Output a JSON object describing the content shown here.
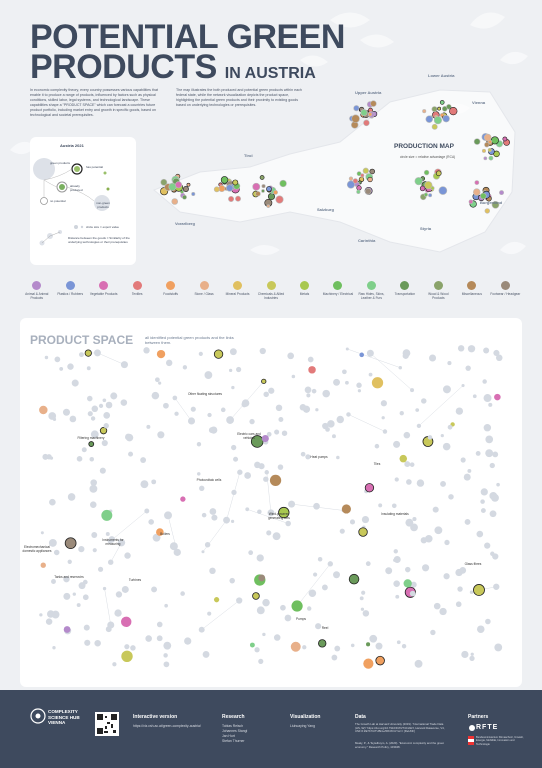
{
  "title": {
    "line1": "POTENTIAL GREEN",
    "line2": "PRODUCTS",
    "suffix": "IN AUSTRIA"
  },
  "intro_text": "In economic complexity theory, every country possesses various capabilities that enable it to produce a range of products, influenced by factors such as physical conditions, skilled labor, legal systems, and technological landscape. These capabilities shape a \"PRODUCT SPACE\" which can forecast a countries future product portfolio, including market entry and growth in specific goods, based on technological and societal prerequisites.",
  "map_text": "The map illustrates the both produced and potential green products within each federal state, while the network visualization depicts the product space, highlighting the potential green products and their proximity to existing goods based on underlying technologies or prerequisites.",
  "legend": {
    "title": "Austria 2021",
    "labels": [
      "green products",
      "has potential",
      "already produced",
      "no potential",
      "non-green products"
    ],
    "size_note": "circle size = export value",
    "distance_note": "Distance between the goods = Similarity of the underlying technologies or their prerequisites"
  },
  "production_map": {
    "title": "PRODUCTION MAP",
    "subtitle": "circle size = relative advantage (RCA)",
    "regions": [
      "Upper Austria",
      "Lower Austria",
      "Vienna",
      "Tirol",
      "Vorarlberg",
      "Salzburg",
      "Carinthia",
      "Styria",
      "Burgenland"
    ]
  },
  "categories": [
    {
      "label": "Animal & Animal Products",
      "color": "#b48acb"
    },
    {
      "label": "Plastics / Rubbers",
      "color": "#7a95d6"
    },
    {
      "label": "Vegetable Products",
      "color": "#d86fb3"
    },
    {
      "label": "Textiles",
      "color": "#e27a7a"
    },
    {
      "label": "Foodstuffs",
      "color": "#f0a060"
    },
    {
      "label": "Stone / Glass",
      "color": "#e8b08a"
    },
    {
      "label": "Mineral Products",
      "color": "#e0c060"
    },
    {
      "label": "Chemicals & Allied Industries",
      "color": "#c8c85a"
    },
    {
      "label": "Metals",
      "color": "#a8c850"
    },
    {
      "label": "Machinery / Electrical",
      "color": "#6fbf5f"
    },
    {
      "label": "Raw Hides, Skins, Leather & Furs",
      "color": "#7fcf8a"
    },
    {
      "label": "Transportation",
      "color": "#6a9a5a"
    },
    {
      "label": "Wood & Wood Products",
      "color": "#8aa36a"
    },
    {
      "label": "Miscellaneous",
      "color": "#b58a5a"
    },
    {
      "label": "Footwear / Headgear",
      "color": "#9a8a7a"
    }
  ],
  "product_space": {
    "title": "PRODUCT SPACE",
    "subtitle": "all identified potential green products and the links between them.",
    "labels": [
      "Other floating structures",
      "Electric cars and vehicles",
      "Photovoltaic cells",
      "Wind-powered generating sets",
      "Heat pumps",
      "Electromechanical domestic appliances",
      "Tanks and reservoirs",
      "Instruments for measuring",
      "Boilers",
      "Turbines",
      "Tiles",
      "Insulating materials",
      "Glass fibres",
      "Filtering machinery",
      "Pumps",
      "Reel"
    ]
  },
  "footer": {
    "org": "COMPLEXITY SCIENCE HUB VIENNA",
    "interactive_title": "Interactive version",
    "interactive_url": "https://viz.csh.ac.at/green-complexity-austria/",
    "research_title": "Research",
    "researchers": [
      "Tobias Reisch",
      "Johannes Stangl",
      "Jan Hurt",
      "Stefan Thurner"
    ],
    "visualization_title": "Visualization",
    "visualizer": "Liuhuaying Yang",
    "data_title": "Data",
    "data_text1": "The Growth Lab at Harvard University (2019). \"International Trade Data (HS, 92)\" https://doi.org/10.7910/DVN/T4CHWJ, Harvard Dataverse, V4, UNF:6:ZE7b7IUTUBi4+ZRKIXOcYw== [fileUNF]",
    "data_text2": "Mealy, P., & Teytelboym, A. (2020). \"Economic complexity and the green economy.\" Research Policy, 103948.",
    "partners_title": "Partners",
    "partner1": "RFTE",
    "partner2": "Bundesministerium Klimaschutz, Umwelt, Energie, Mobilität, Innovation und Technologie"
  }
}
